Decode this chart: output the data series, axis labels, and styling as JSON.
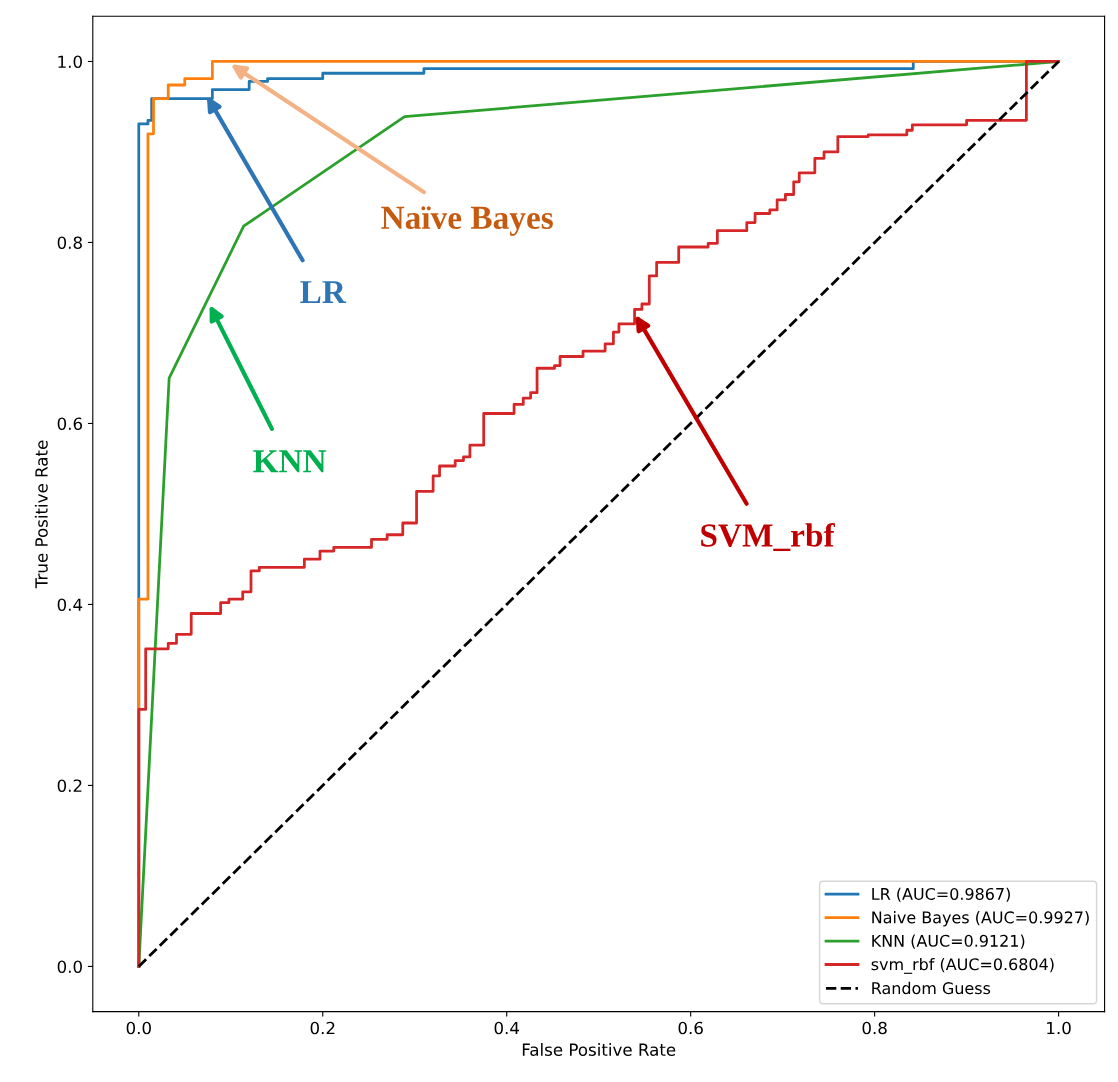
{
  "chart_data": {
    "type": "line",
    "xlabel": "False Positive Rate",
    "ylabel": "True Positive Rate",
    "xlim": [
      -0.05,
      1.05
    ],
    "ylim": [
      -0.05,
      1.05
    ],
    "xticks": [
      {
        "value": 0.0,
        "label": "0.0"
      },
      0.2,
      0.4,
      0.6,
      0.8,
      {
        "value": 1.0,
        "label": "1.0"
      }
    ],
    "yticks": [
      {
        "value": 0.0,
        "label": "0.0"
      },
      0.2,
      0.4,
      0.6,
      0.8,
      {
        "value": 1.0,
        "label": "1.0"
      }
    ],
    "grid": false,
    "legend": "bottom right",
    "series": [
      {
        "name": "LR (AUC=0.9867)",
        "type": "step",
        "color": "#1f77b4",
        "line_style": "solid",
        "x": [
          0,
          0,
          0.01,
          0.014,
          0.08,
          0.12,
          0.14,
          0.2,
          0.31,
          0.842,
          1.0
        ],
        "values": [
          0,
          0.931,
          0.935,
          0.959,
          0.969,
          0.978,
          0.981,
          0.987,
          0.992,
          1.0,
          1.0
        ]
      },
      {
        "name": "Naive Bayes (AUC=0.9927)",
        "type": "step",
        "color": "#ff7f0e",
        "line_style": "solid",
        "x": [
          0,
          0,
          0.01,
          0.016,
          0.032,
          0.05,
          0.08,
          1.0
        ],
        "values": [
          0,
          0.406,
          0.92,
          0.959,
          0.974,
          0.981,
          1.0,
          1.0
        ]
      },
      {
        "name": "KNN (AUC=0.9121)",
        "color": "#2ca02c",
        "line_style": "solid",
        "x": [
          0,
          0.033,
          0.114,
          0.289,
          1.0
        ],
        "values": [
          0,
          0.65,
          0.818,
          0.939,
          1.0
        ]
      },
      {
        "name": "svm_rbf (AUC=0.6804)",
        "type": "step",
        "color": "#d62728",
        "line_style": "solid",
        "x": [
          0,
          0,
          0.0075,
          0.032,
          0.041,
          0.057,
          0.089,
          0.098,
          0.113,
          0.122,
          0.131,
          0.18,
          0.197,
          0.212,
          0.253,
          0.27,
          0.287,
          0.302,
          0.32,
          0.327,
          0.344,
          0.353,
          0.36,
          0.375,
          0.408,
          0.418,
          0.426,
          0.433,
          0.452,
          0.458,
          0.483,
          0.507,
          0.516,
          0.522,
          0.539,
          0.547,
          0.555,
          0.563,
          0.587,
          0.619,
          0.629,
          0.661,
          0.67,
          0.686,
          0.694,
          0.703,
          0.712,
          0.718,
          0.735,
          0.745,
          0.76,
          0.793,
          0.835,
          0.841,
          0.9,
          0.965,
          1.0
        ],
        "values": [
          0,
          0.284,
          0.351,
          0.357,
          0.367,
          0.39,
          0.402,
          0.406,
          0.414,
          0.437,
          0.441,
          0.45,
          0.459,
          0.463,
          0.472,
          0.477,
          0.49,
          0.525,
          0.542,
          0.553,
          0.559,
          0.563,
          0.576,
          0.611,
          0.621,
          0.628,
          0.634,
          0.661,
          0.664,
          0.674,
          0.68,
          0.688,
          0.701,
          0.71,
          0.726,
          0.732,
          0.763,
          0.778,
          0.795,
          0.799,
          0.813,
          0.822,
          0.832,
          0.836,
          0.847,
          0.853,
          0.867,
          0.877,
          0.893,
          0.9,
          0.917,
          0.919,
          0.924,
          0.93,
          0.935,
          1.0,
          1.0
        ]
      },
      {
        "name": "Random Guess",
        "color": "#000000",
        "line_style": "dashed",
        "x": [
          0,
          1
        ],
        "values": [
          0,
          1
        ]
      }
    ],
    "annotations": [
      {
        "text": "LR",
        "x": 0.074,
        "y": 0.962
      },
      {
        "text": "Naïve Bayes",
        "x": 0.1,
        "y": 0.997
      },
      {
        "text": "KNN",
        "x": 0.077,
        "y": 0.731
      },
      {
        "text": "SVM_rbf",
        "x": 0.54,
        "y": 0.72
      }
    ]
  }
}
